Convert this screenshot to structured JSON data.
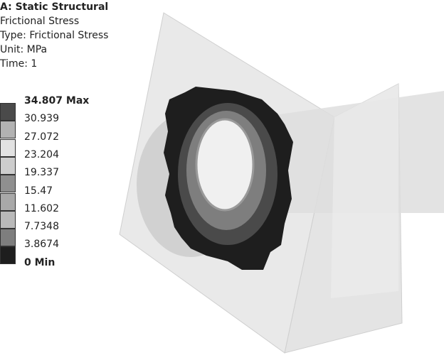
{
  "header": {
    "title": "A: Static Structural",
    "result": "Frictional Stress",
    "type": "Type: Frictional Stress",
    "unit": "Unit: MPa",
    "time": "Time: 1"
  },
  "legend": {
    "labels": [
      "34.807 Max",
      "30.939",
      "27.072",
      "23.204",
      "19.337",
      "15.47",
      "11.602",
      "7.7348",
      "3.8674",
      "0 Min"
    ],
    "band_colors": [
      "#4a4a4a",
      "#b2b2b2",
      "#e2e2e2",
      "#cdcdcd",
      "#8f8f8f",
      "#a9a9a9",
      "#b9b9b9",
      "#7e7e7e",
      "#1e1e1e"
    ]
  }
}
